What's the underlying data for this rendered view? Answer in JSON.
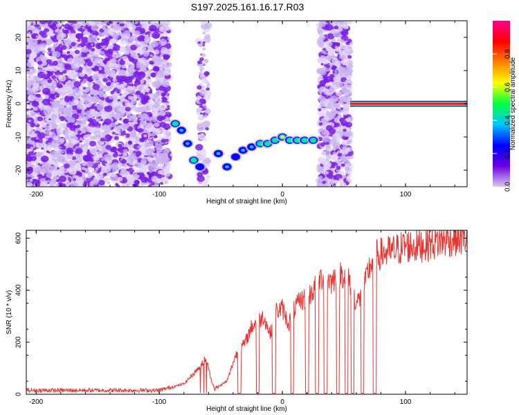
{
  "title": "S197.2025.161.16.17.R03",
  "chart_data": [
    {
      "type": "heatmap",
      "xlabel": "Height of straight line (km)",
      "ylabel": "Frequency (Hz)",
      "xlim": [
        -208,
        150
      ],
      "ylim": [
        -25,
        25
      ],
      "xticks": [
        -200,
        -100,
        0,
        100
      ],
      "yticks": [
        -20,
        -10,
        0,
        10,
        20
      ],
      "colorbar": {
        "label": "Normalized spectral amplitude",
        "range": [
          0,
          1
        ],
        "ticks": [
          0.0,
          0.2,
          0.4,
          0.6,
          0.8
        ],
        "tick_labels": [
          "0.0",
          "0.2",
          "0.4",
          "0.6",
          "0.8"
        ],
        "colors": [
          "#d8c8f0",
          "#6a00e0",
          "#0000ff",
          "#00c8ff",
          "#00ff40",
          "#ffff00",
          "#ff8000",
          "#ff0000",
          "#ff0090"
        ]
      },
      "noise_bands": [
        {
          "x_from": -208,
          "x_to": -92,
          "level": 0.2
        },
        {
          "x_from": -68,
          "x_to": -60,
          "level": 0.1
        },
        {
          "x_from": 30,
          "x_to": 55,
          "level": 0.2
        }
      ],
      "signal_track": [
        {
          "x": -87,
          "freq": -6,
          "amp": 0.45
        },
        {
          "x": -82,
          "freq": -8,
          "amp": 0.4
        },
        {
          "x": -77,
          "freq": -12,
          "amp": 0.35
        },
        {
          "x": -72,
          "freq": -17,
          "amp": 0.45
        },
        {
          "x": -67,
          "freq": -19,
          "amp": 0.3
        },
        {
          "x": -52,
          "freq": -15,
          "amp": 0.4
        },
        {
          "x": -45,
          "freq": -19,
          "amp": 0.4
        },
        {
          "x": -38,
          "freq": -16,
          "amp": 0.3
        },
        {
          "x": -32,
          "freq": -14,
          "amp": 0.35
        },
        {
          "x": -25,
          "freq": -13,
          "amp": 0.4
        },
        {
          "x": -18,
          "freq": -12,
          "amp": 0.55
        },
        {
          "x": -12,
          "freq": -12,
          "amp": 0.5
        },
        {
          "x": -6,
          "freq": -11,
          "amp": 0.45
        },
        {
          "x": 0,
          "freq": -10,
          "amp": 0.6
        },
        {
          "x": 6,
          "freq": -11,
          "amp": 0.45
        },
        {
          "x": 12,
          "freq": -11,
          "amp": 0.5
        },
        {
          "x": 18,
          "freq": -11,
          "amp": 0.45
        },
        {
          "x": 25,
          "freq": -11,
          "amp": 0.55
        }
      ],
      "carrier": {
        "freq": 0,
        "x_from": 55,
        "x_to": 150,
        "amp": 1.0
      }
    },
    {
      "type": "line",
      "xlabel": "Height of straight line (km)",
      "ylabel": "SNR (10 * v/v)",
      "xlim": [
        -208,
        150
      ],
      "ylim": [
        0,
        630
      ],
      "xticks": [
        -200,
        -100,
        0,
        100
      ],
      "yticks": [
        0,
        200,
        400,
        600
      ],
      "color": "#e8322e",
      "series": [
        {
          "x": [
            -208,
            -150,
            -100,
            -80,
            -70,
            -62,
            -58,
            -55,
            -45,
            -38,
            -30,
            -25,
            -20,
            -15,
            -10,
            -5,
            0,
            5,
            10,
            15,
            20,
            25,
            30,
            35,
            40,
            45,
            50,
            55,
            60,
            65,
            70,
            75,
            80,
            90,
            100,
            110,
            120,
            130,
            140,
            150
          ],
          "y": [
            15,
            15,
            15,
            40,
            90,
            140,
            60,
            20,
            50,
            150,
            200,
            260,
            280,
            300,
            230,
            320,
            330,
            270,
            330,
            360,
            370,
            400,
            440,
            460,
            430,
            470,
            460,
            430,
            350,
            380,
            480,
            530,
            540,
            550,
            570,
            570,
            580,
            590,
            600,
            600
          ]
        }
      ],
      "dropouts": [
        -35,
        -20,
        -7,
        8,
        20,
        28,
        35,
        45,
        52,
        57,
        65,
        75
      ]
    }
  ]
}
